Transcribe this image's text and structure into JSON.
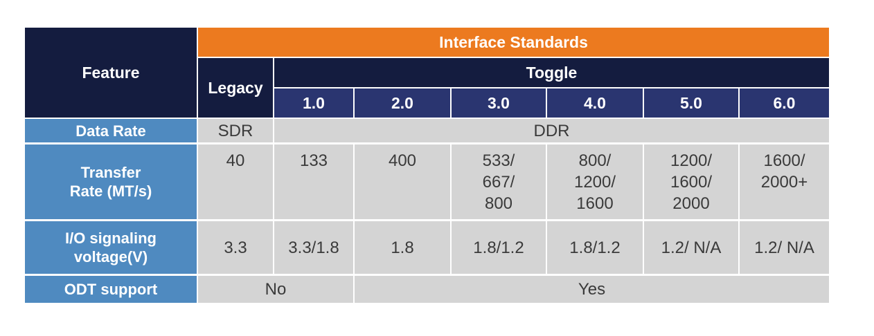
{
  "header": {
    "feature": "Feature",
    "interface_standards": "Interface Standards",
    "legacy": "Legacy",
    "toggle": "Toggle",
    "versions": [
      "1.0",
      "2.0",
      "3.0",
      "4.0",
      "5.0",
      "6.0"
    ]
  },
  "rows": [
    {
      "label": "Data Rate",
      "cells": [
        "SDR",
        "DDR"
      ]
    },
    {
      "label": "Transfer\nRate (MT/s)",
      "cells": [
        "40",
        "133",
        "400",
        "533/\n667/\n800",
        "800/\n1200/\n1600",
        "1200/\n1600/\n2000",
        "1600/\n2000+"
      ]
    },
    {
      "label": "I/O signaling\nvoltage(V)",
      "cells": [
        "3.3",
        "3.3/1.8",
        "1.8",
        "1.8/1.2",
        "1.8/1.2",
        "1.2/ N/A",
        "1.2/ N/A"
      ]
    },
    {
      "label": "ODT support",
      "cells": [
        "No",
        "Yes"
      ]
    }
  ]
}
